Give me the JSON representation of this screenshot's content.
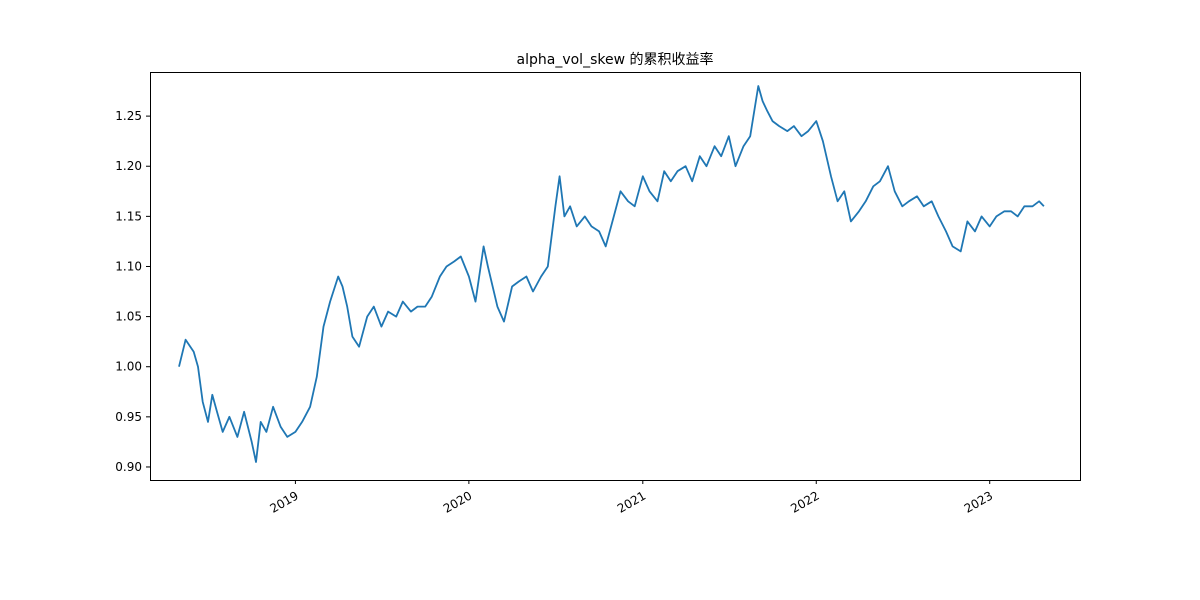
{
  "chart_data": {
    "type": "line",
    "title": "alpha_vol_skew 的累积收益率",
    "xlabel": "",
    "ylabel": "",
    "grid": false,
    "legend": "none",
    "color": "#1f77b4",
    "xlim": [
      "2018-03-01",
      "2023-07-10"
    ],
    "ylim": [
      0.887,
      1.294
    ],
    "x_ticks": [
      "2019",
      "2020",
      "2021",
      "2022",
      "2023"
    ],
    "y_ticks": [
      "0.90",
      "0.95",
      "1.00",
      "1.05",
      "1.10",
      "1.15",
      "1.20",
      "1.25"
    ],
    "series": [
      {
        "x": [
          "2018-05-01",
          "2018-05-15",
          "2018-06-01",
          "2018-06-10",
          "2018-06-20",
          "2018-07-01",
          "2018-07-10",
          "2018-07-20",
          "2018-08-01",
          "2018-08-15",
          "2018-09-01",
          "2018-09-15",
          "2018-10-01",
          "2018-10-10",
          "2018-10-20",
          "2018-11-01",
          "2018-11-15",
          "2018-12-01",
          "2018-12-15",
          "2019-01-01",
          "2019-01-15",
          "2019-02-01",
          "2019-02-15",
          "2019-03-01",
          "2019-03-15",
          "2019-04-01",
          "2019-04-10",
          "2019-04-20",
          "2019-05-01",
          "2019-05-15",
          "2019-06-01",
          "2019-06-15",
          "2019-07-01",
          "2019-07-15",
          "2019-08-01",
          "2019-08-15",
          "2019-09-01",
          "2019-09-15",
          "2019-10-01",
          "2019-10-15",
          "2019-11-01",
          "2019-11-15",
          "2019-12-01",
          "2019-12-15",
          "2020-01-01",
          "2020-01-15",
          "2020-02-01",
          "2020-02-10",
          "2020-03-01",
          "2020-03-15",
          "2020-04-01",
          "2020-04-15",
          "2020-05-01",
          "2020-05-15",
          "2020-06-01",
          "2020-06-15",
          "2020-07-01",
          "2020-07-10",
          "2020-07-20",
          "2020-08-01",
          "2020-08-15",
          "2020-09-01",
          "2020-09-15",
          "2020-10-01",
          "2020-10-15",
          "2020-11-01",
          "2020-11-15",
          "2020-12-01",
          "2020-12-15",
          "2021-01-01",
          "2021-01-15",
          "2021-02-01",
          "2021-02-15",
          "2021-03-01",
          "2021-03-15",
          "2021-04-01",
          "2021-04-15",
          "2021-05-01",
          "2021-05-15",
          "2021-06-01",
          "2021-06-15",
          "2021-07-01",
          "2021-07-15",
          "2021-08-01",
          "2021-08-15",
          "2021-09-01",
          "2021-09-10",
          "2021-09-20",
          "2021-10-01",
          "2021-10-15",
          "2021-11-01",
          "2021-11-15",
          "2021-12-01",
          "2021-12-15",
          "2022-01-01",
          "2022-01-15",
          "2022-02-01",
          "2022-02-15",
          "2022-03-01",
          "2022-03-15",
          "2022-04-01",
          "2022-04-15",
          "2022-05-01",
          "2022-05-15",
          "2022-06-01",
          "2022-06-15",
          "2022-07-01",
          "2022-07-15",
          "2022-08-01",
          "2022-08-15",
          "2022-09-01",
          "2022-09-15",
          "2022-10-01",
          "2022-10-15",
          "2022-11-01",
          "2022-11-15",
          "2022-12-01",
          "2022-12-15",
          "2023-01-01",
          "2023-01-15",
          "2023-02-01",
          "2023-02-15",
          "2023-03-01",
          "2023-03-15",
          "2023-04-01",
          "2023-04-15",
          "2023-04-25"
        ],
        "y": [
          1.0,
          1.027,
          1.015,
          1.0,
          0.965,
          0.945,
          0.972,
          0.955,
          0.935,
          0.95,
          0.93,
          0.955,
          0.925,
          0.905,
          0.945,
          0.935,
          0.96,
          0.94,
          0.93,
          0.935,
          0.945,
          0.96,
          0.99,
          1.04,
          1.065,
          1.09,
          1.08,
          1.06,
          1.03,
          1.02,
          1.05,
          1.06,
          1.04,
          1.055,
          1.05,
          1.065,
          1.055,
          1.06,
          1.06,
          1.07,
          1.09,
          1.1,
          1.105,
          1.11,
          1.09,
          1.065,
          1.12,
          1.1,
          1.06,
          1.045,
          1.08,
          1.085,
          1.09,
          1.075,
          1.09,
          1.1,
          1.16,
          1.19,
          1.15,
          1.16,
          1.14,
          1.15,
          1.14,
          1.135,
          1.12,
          1.15,
          1.175,
          1.165,
          1.16,
          1.19,
          1.175,
          1.165,
          1.195,
          1.185,
          1.195,
          1.2,
          1.185,
          1.21,
          1.2,
          1.22,
          1.21,
          1.23,
          1.2,
          1.22,
          1.23,
          1.28,
          1.265,
          1.255,
          1.245,
          1.24,
          1.235,
          1.24,
          1.23,
          1.235,
          1.245,
          1.225,
          1.19,
          1.165,
          1.175,
          1.145,
          1.155,
          1.165,
          1.18,
          1.185,
          1.2,
          1.175,
          1.16,
          1.165,
          1.17,
          1.16,
          1.165,
          1.15,
          1.135,
          1.12,
          1.115,
          1.145,
          1.135,
          1.15,
          1.14,
          1.15,
          1.155,
          1.155,
          1.15,
          1.16,
          1.16,
          1.165,
          1.16
        ]
      }
    ]
  }
}
